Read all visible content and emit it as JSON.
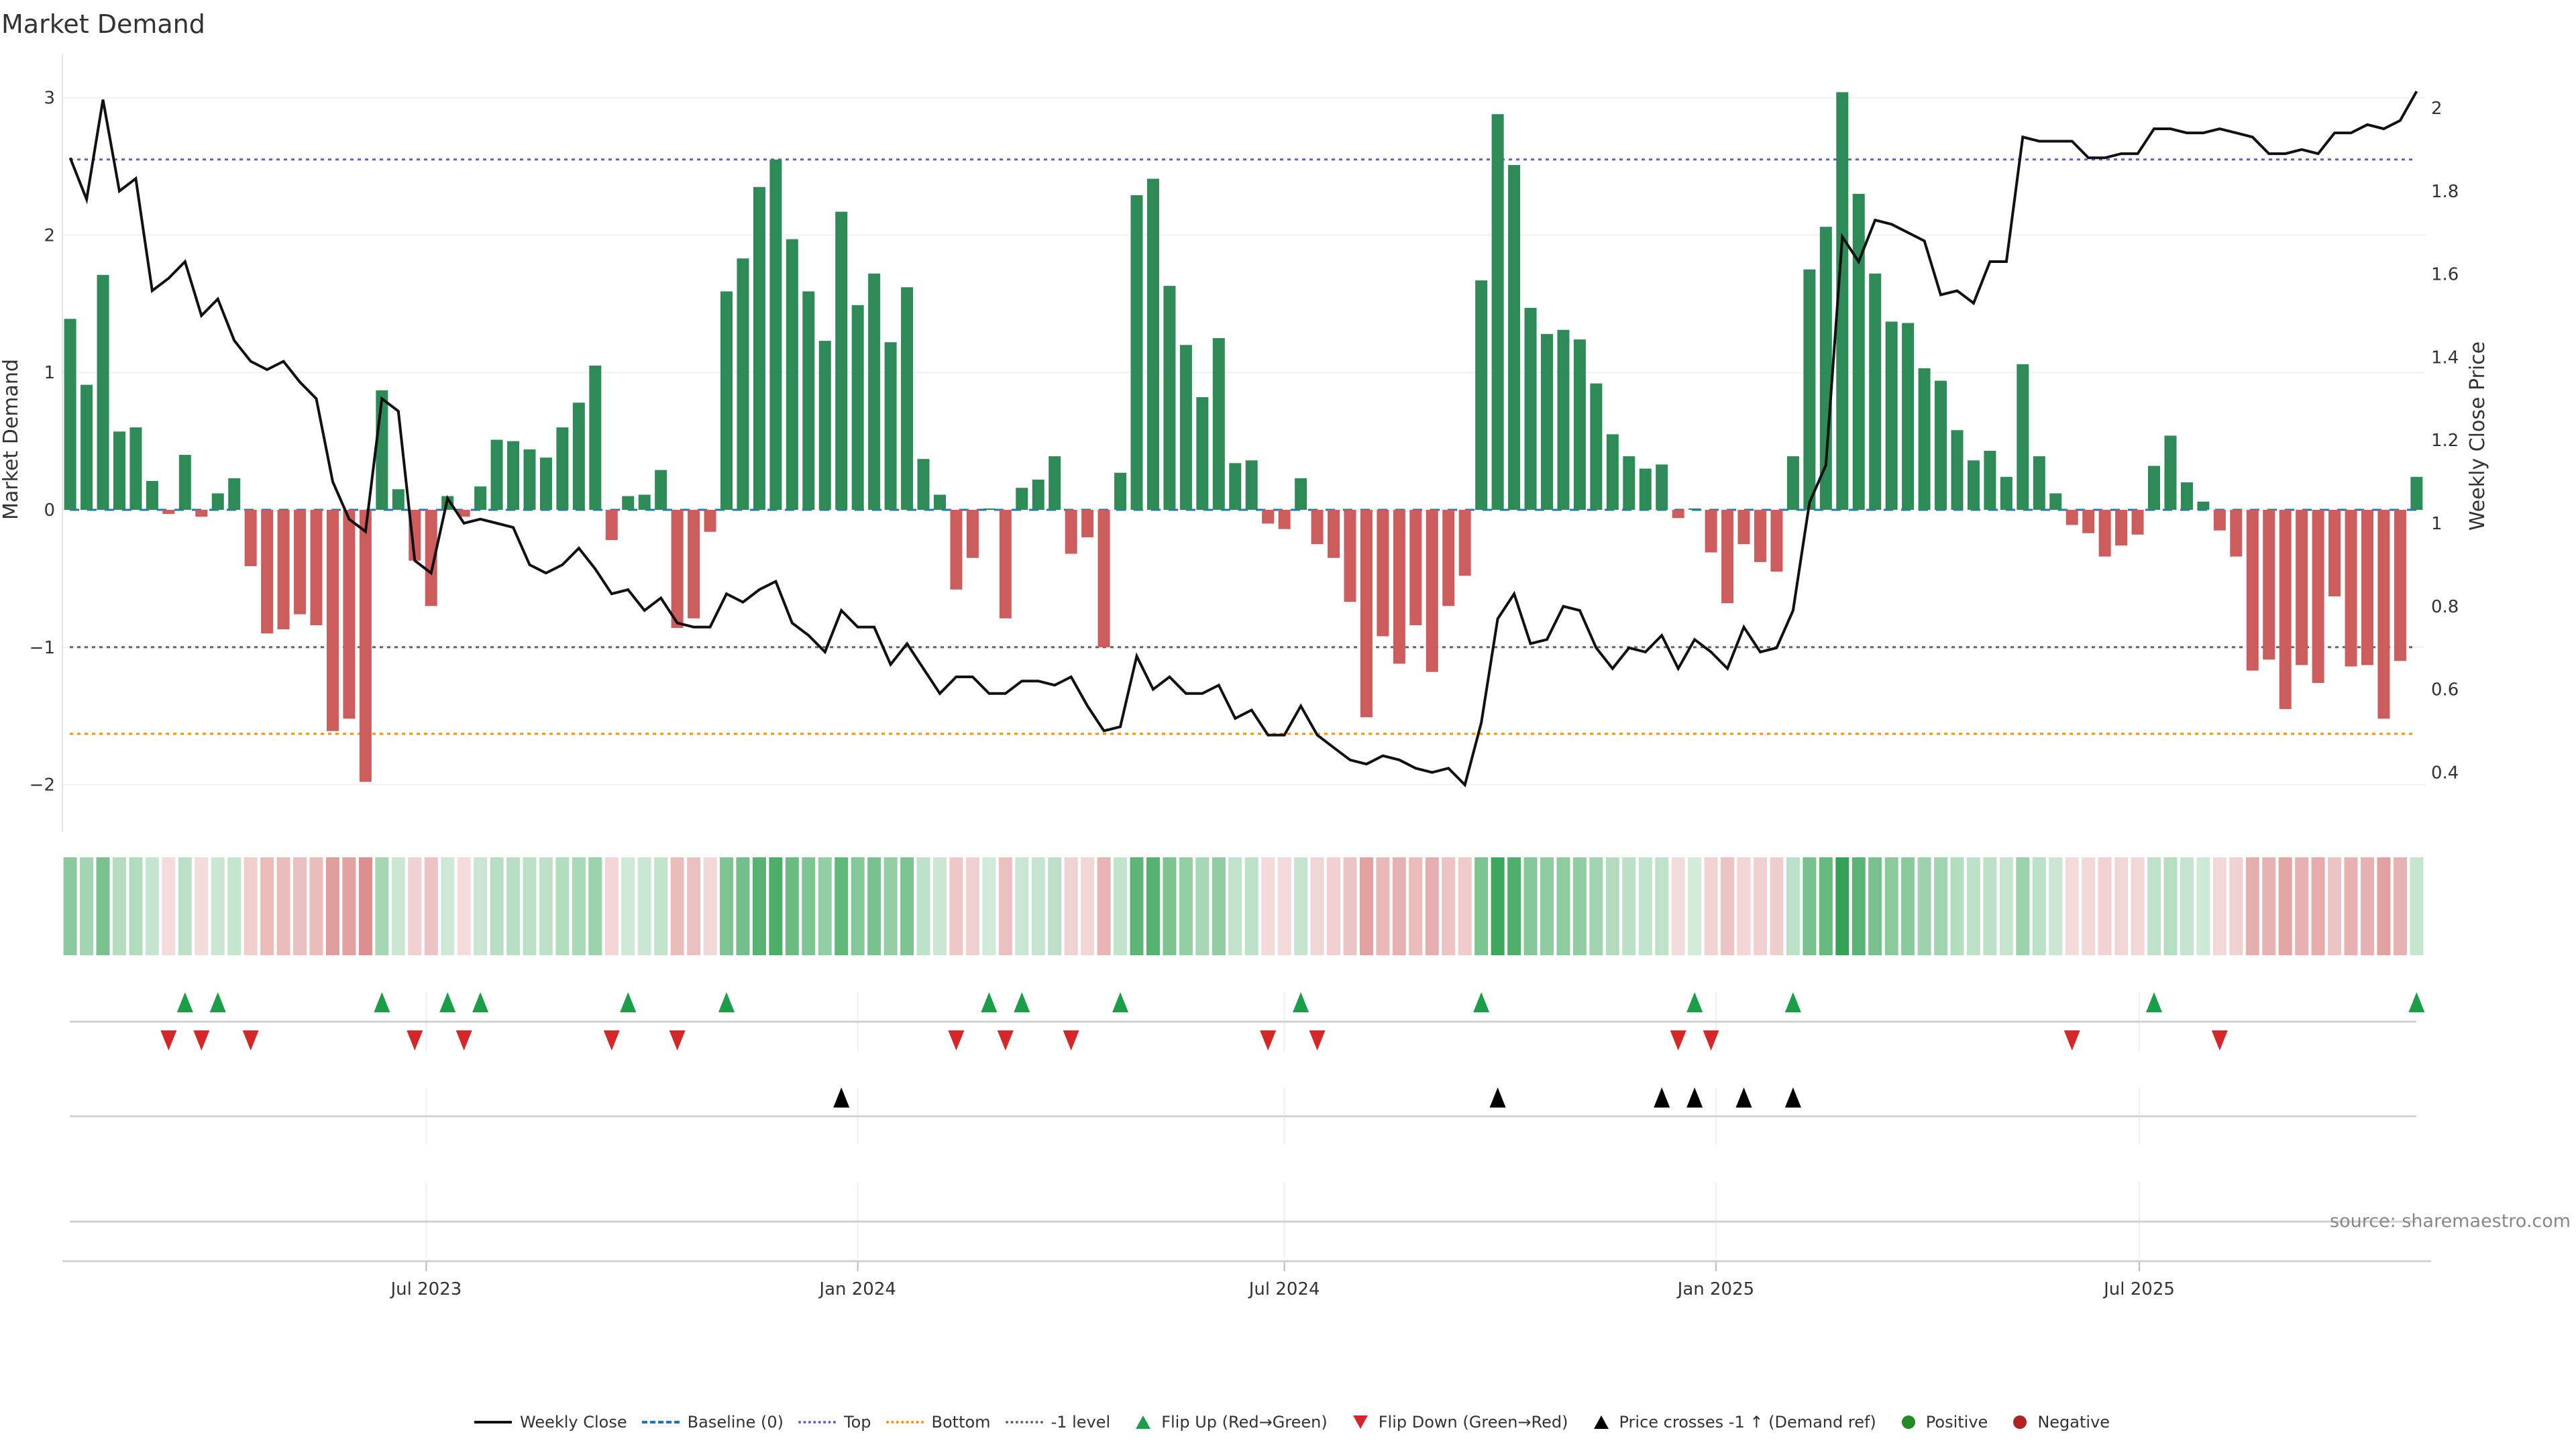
{
  "title": "Market Demand",
  "source": "source: sharemaestro.com",
  "legend": {
    "weekly_close": "Weekly Close",
    "baseline": "Baseline (0)",
    "top": "Top",
    "bottom": "Bottom",
    "minus1": "-1 level",
    "flip_up": "Flip Up (Red→Green)",
    "flip_down": "Flip Down (Green→Red)",
    "price_cross": "Price crosses -1 ↑ (Demand ref)",
    "positive": "Positive",
    "negative": "Negative"
  },
  "colors": {
    "bar_positive": "#2e8b57",
    "bar_negative": "#cd5c5c",
    "price_line": "#111111",
    "baseline": "#1f77b4",
    "top": "#6a5acd",
    "bottom": "#ff8c00",
    "minus1": "#666666",
    "flip_up": "#1a9e48",
    "flip_down": "#d62728",
    "cross": "#000000",
    "positive": "#228b22",
    "negative": "#b22222"
  },
  "chart_data": {
    "type": "bar",
    "title": "Market Demand",
    "ylabel": "Market Demand",
    "y2label": "Weekly Close Price",
    "ylim": [
      -2.2,
      3.1
    ],
    "y2lim": [
      0.34,
      2.07
    ],
    "yticks": [
      "3",
      "2",
      "1",
      "0",
      "−1",
      "−2"
    ],
    "ytick_values": [
      3,
      2,
      1,
      0,
      -1,
      -2
    ],
    "y2ticks": [
      "2",
      "1.8",
      "1.6",
      "1.4",
      "1.2",
      "1",
      "0.8",
      "0.6",
      "0.4"
    ],
    "y2tick_values": [
      2,
      1.8,
      1.6,
      1.4,
      1.2,
      1,
      0.8,
      0.6,
      0.4
    ],
    "x_unit": "week index",
    "xticks": [
      {
        "label": "Jul 2023",
        "week": 21.7
      },
      {
        "label": "Jan 2024",
        "week": 48.0
      },
      {
        "label": "Jul 2024",
        "week": 74.0
      },
      {
        "label": "Jan 2025",
        "week": 100.3
      },
      {
        "label": "Jul 2025",
        "week": 126.1
      }
    ],
    "levels": {
      "baseline": 0,
      "top": 2.55,
      "bottom": -1.63,
      "minus1": -1
    },
    "demand": [
      1.39,
      0.91,
      1.71,
      0.57,
      0.6,
      0.21,
      -0.03,
      0.4,
      -0.05,
      0.12,
      0.23,
      -0.41,
      -0.9,
      -0.87,
      -0.76,
      -0.84,
      -1.61,
      -1.52,
      -1.98,
      0.87,
      0.15,
      -0.37,
      -0.7,
      0.1,
      -0.05,
      0.17,
      0.51,
      0.5,
      0.44,
      0.38,
      0.6,
      0.78,
      1.05,
      -0.22,
      0.1,
      0.11,
      0.29,
      -0.86,
      -0.79,
      -0.16,
      1.59,
      1.83,
      2.35,
      2.55,
      1.97,
      1.59,
      1.23,
      2.17,
      1.49,
      1.72,
      1.22,
      1.62,
      0.37,
      0.11,
      -0.58,
      -0.35,
      0.01,
      -0.79,
      0.16,
      0.22,
      0.39,
      -0.32,
      -0.2,
      -1.0,
      0.27,
      2.29,
      2.41,
      1.63,
      1.2,
      0.82,
      1.25,
      0.34,
      0.36,
      -0.1,
      -0.14,
      0.23,
      -0.25,
      -0.35,
      -0.67,
      -1.51,
      -0.92,
      -1.12,
      -0.84,
      -1.18,
      -0.7,
      -0.48,
      1.67,
      2.88,
      2.51,
      1.47,
      1.28,
      1.31,
      1.24,
      0.92,
      0.55,
      0.39,
      0.3,
      0.33,
      -0.06,
      0.01,
      -0.31,
      -0.68,
      -0.25,
      -0.38,
      -0.45,
      0.39,
      1.75,
      2.06,
      3.04,
      2.3,
      1.72,
      1.37,
      1.36,
      1.03,
      0.94,
      0.58,
      0.36,
      0.43,
      0.24,
      1.06,
      0.39,
      0.12,
      -0.11,
      -0.17,
      -0.34,
      -0.26,
      -0.18,
      0.32,
      0.54,
      0.2,
      0.06,
      -0.15,
      -0.34,
      -1.17,
      -1.09,
      -1.45,
      -1.13,
      -1.26,
      -0.63,
      -1.14,
      -1.13,
      -1.52,
      -1.1,
      0.24
    ],
    "weekly_close": [
      1.88,
      1.78,
      2.02,
      1.8,
      1.83,
      1.56,
      1.59,
      1.63,
      1.5,
      1.54,
      1.44,
      1.39,
      1.37,
      1.39,
      1.34,
      1.3,
      1.1,
      1.01,
      0.98,
      1.3,
      1.27,
      0.91,
      0.88,
      1.06,
      1.0,
      1.01,
      1.0,
      0.99,
      0.9,
      0.88,
      0.9,
      0.94,
      0.89,
      0.83,
      0.84,
      0.79,
      0.82,
      0.76,
      0.75,
      0.75,
      0.83,
      0.81,
      0.84,
      0.86,
      0.76,
      0.73,
      0.69,
      0.79,
      0.75,
      0.75,
      0.66,
      0.71,
      0.65,
      0.59,
      0.63,
      0.63,
      0.59,
      0.59,
      0.62,
      0.62,
      0.61,
      0.63,
      0.56,
      0.5,
      0.51,
      0.68,
      0.6,
      0.63,
      0.59,
      0.59,
      0.61,
      0.53,
      0.55,
      0.49,
      0.49,
      0.56,
      0.49,
      0.46,
      0.43,
      0.42,
      0.44,
      0.43,
      0.41,
      0.4,
      0.41,
      0.37,
      0.52,
      0.77,
      0.83,
      0.71,
      0.72,
      0.8,
      0.79,
      0.7,
      0.65,
      0.7,
      0.69,
      0.73,
      0.65,
      0.72,
      0.69,
      0.65,
      0.75,
      0.69,
      0.7,
      0.79,
      1.05,
      1.14,
      1.69,
      1.63,
      1.73,
      1.72,
      1.7,
      1.68,
      1.55,
      1.56,
      1.53,
      1.63,
      1.63,
      1.93,
      1.92,
      1.92,
      1.92,
      1.88,
      1.88,
      1.89,
      1.89,
      1.95,
      1.95,
      1.94,
      1.94,
      1.95,
      1.94,
      1.93,
      1.89,
      1.89,
      1.9,
      1.89,
      1.94,
      1.94,
      1.96,
      1.95,
      1.97,
      2.04
    ],
    "flip_up_weeks": [
      7,
      9,
      19,
      23,
      25,
      34,
      40,
      56,
      58,
      64,
      75,
      86,
      99,
      105,
      127,
      143
    ],
    "flip_down_weeks": [
      6,
      8,
      11,
      21,
      24,
      33,
      37,
      54,
      57,
      61,
      73,
      76,
      98,
      100,
      122,
      131
    ],
    "price_cross_weeks": [
      47,
      87,
      97,
      99,
      102,
      105
    ],
    "legend_position": "bottom-center"
  }
}
